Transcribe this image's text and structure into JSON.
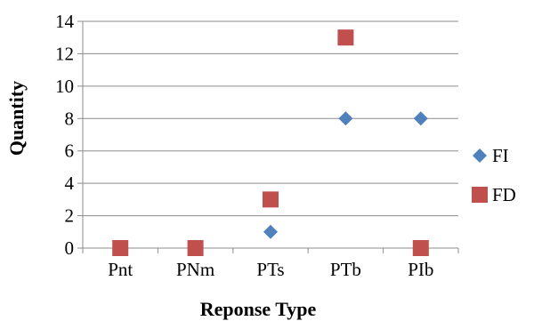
{
  "chart_data": {
    "type": "scatter",
    "categories": [
      "Pnt",
      "PNm",
      "PTs",
      "PTb",
      "PIb"
    ],
    "series": [
      {
        "name": "FI",
        "values": [
          null,
          null,
          1,
          8,
          8
        ],
        "color": "#4F81BD",
        "marker": "diamond"
      },
      {
        "name": "FD",
        "values": [
          0,
          0,
          3,
          13,
          0
        ],
        "color": "#C0504D",
        "marker": "square"
      }
    ],
    "xlabel": "Reponse Type",
    "ylabel": "Quantity",
    "ylim": [
      0,
      14
    ],
    "yticks": [
      0,
      2,
      4,
      6,
      8,
      10,
      12,
      14
    ],
    "grid": true,
    "legend": "right"
  }
}
